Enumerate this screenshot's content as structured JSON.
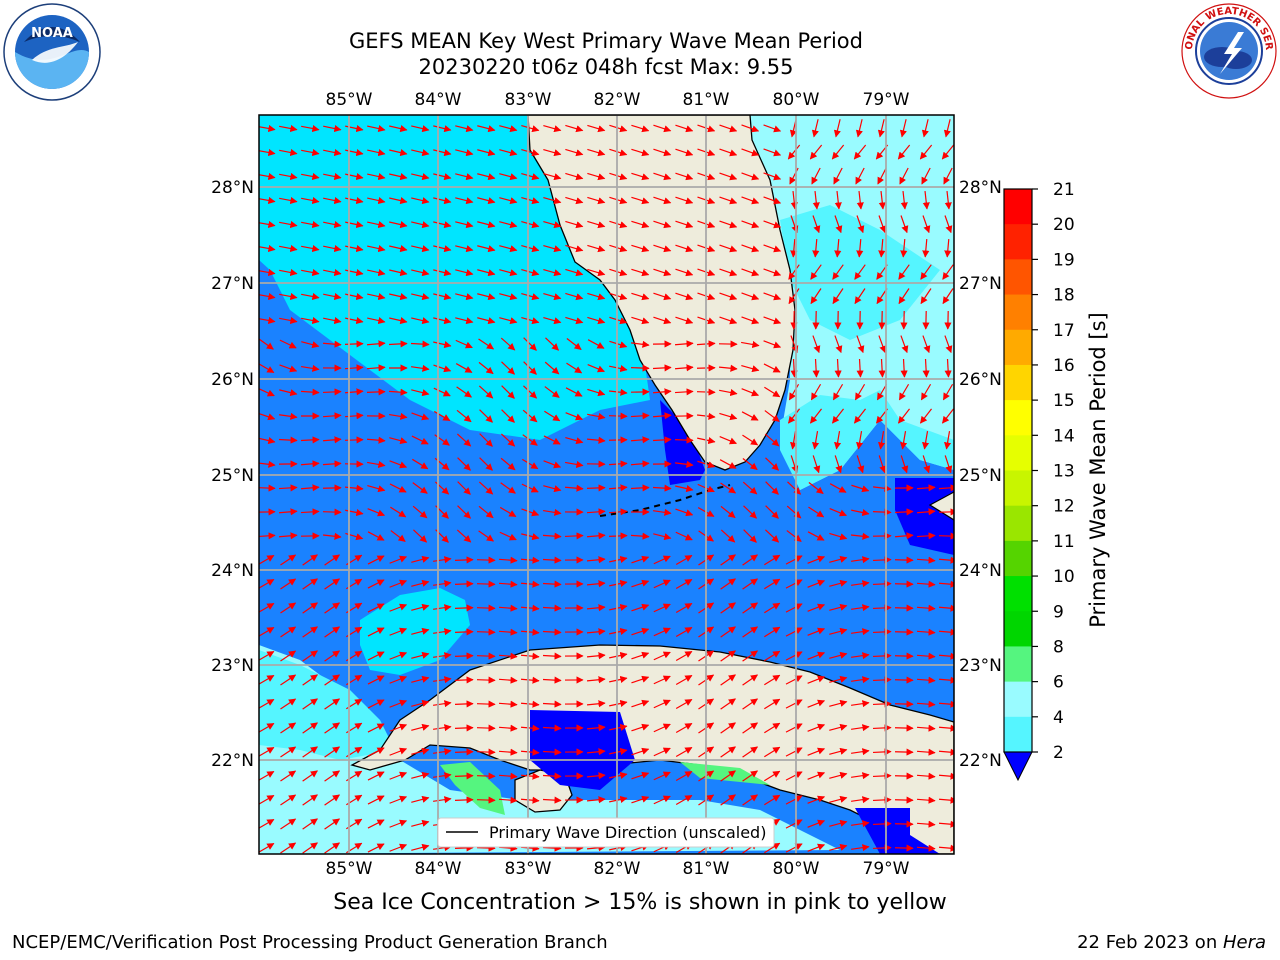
{
  "header": {
    "title_line1": "GEFS MEAN Key West Primary Wave Mean Period",
    "title_line2": "20230220 t06z 048h fcst   Max: 9.55"
  },
  "logos": {
    "left": "NOAA",
    "left_ring_text": "NATIONAL OCEANIC AND ATMOSPHERIC ADMINISTRATION · U.S. DEPARTMENT OF COMMERCE",
    "right_ring_text": "NATIONAL WEATHER SERVICE"
  },
  "map": {
    "lon_labels": [
      "85°W",
      "84°W",
      "83°W",
      "82°W",
      "81°W",
      "80°W",
      "79°W"
    ],
    "lat_labels": [
      "28°N",
      "27°N",
      "26°N",
      "25°N",
      "24°N",
      "23°N",
      "22°N"
    ],
    "legend_label": "Primary Wave Direction (unscaled)",
    "colors": {
      "land": "#eeecdc",
      "c2_4": "#1a82ff",
      "c4_6": "#00e5ff",
      "c6_8": "#55f5ff",
      "c8_9": "#99fbff",
      "c9_10": "#55f57f",
      "deep": "#0000ff",
      "arrow": "#ff0000"
    }
  },
  "colorbar": {
    "label": "Primary Wave Mean Period [s]",
    "ticks": [
      "21",
      "20",
      "19",
      "18",
      "17",
      "16",
      "15",
      "14",
      "13",
      "12",
      "11",
      "10",
      "9",
      "8",
      "6",
      "4",
      "2"
    ],
    "colors": [
      "#ff0000",
      "#ff2200",
      "#ff5500",
      "#ff8000",
      "#ffaa00",
      "#ffd500",
      "#ffff00",
      "#e6ff00",
      "#c8f500",
      "#9ae600",
      "#55d400",
      "#00e000",
      "#00d600",
      "#55f57f",
      "#99fbff",
      "#55f5ff",
      "#00e5ff",
      "#1a82ff",
      "#0000ff"
    ]
  },
  "annotations": {
    "sea_ice": "Sea Ice Concentration > 15% is shown in pink to yellow"
  },
  "footer": {
    "left": "NCEP/EMC/Verification Post Processing Product Generation Branch",
    "right_prefix": "22 Feb 2023 on ",
    "right_host": "Hera"
  }
}
